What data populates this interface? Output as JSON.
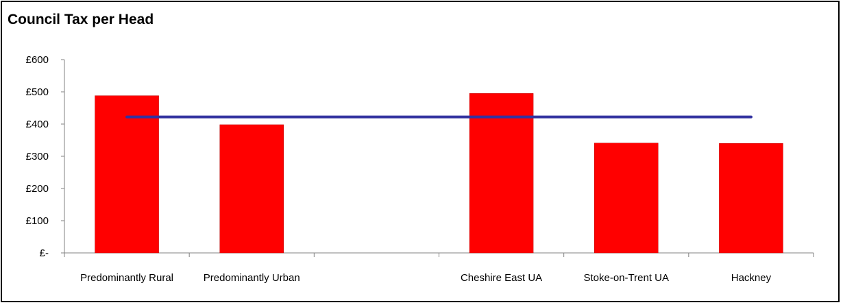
{
  "chart_data": {
    "type": "bar",
    "title": "Council Tax per Head",
    "categories": [
      "Predominantly Rural",
      "Predominantly Urban",
      "",
      "Cheshire East UA",
      "Stoke-on-Trent UA",
      "Hackney"
    ],
    "series": [
      {
        "type": "bar",
        "values": [
          488,
          398,
          null,
          495,
          341,
          340
        ],
        "color": "#ff0000"
      },
      {
        "type": "line",
        "values": [
          422,
          422,
          422,
          422,
          422,
          422
        ],
        "color": "#3333a0"
      }
    ],
    "yticks": [
      "£-",
      "£100",
      "£200",
      "£300",
      "£400",
      "£500",
      "£600"
    ],
    "ylim": [
      0,
      600
    ],
    "grid": false,
    "legend": "none"
  }
}
